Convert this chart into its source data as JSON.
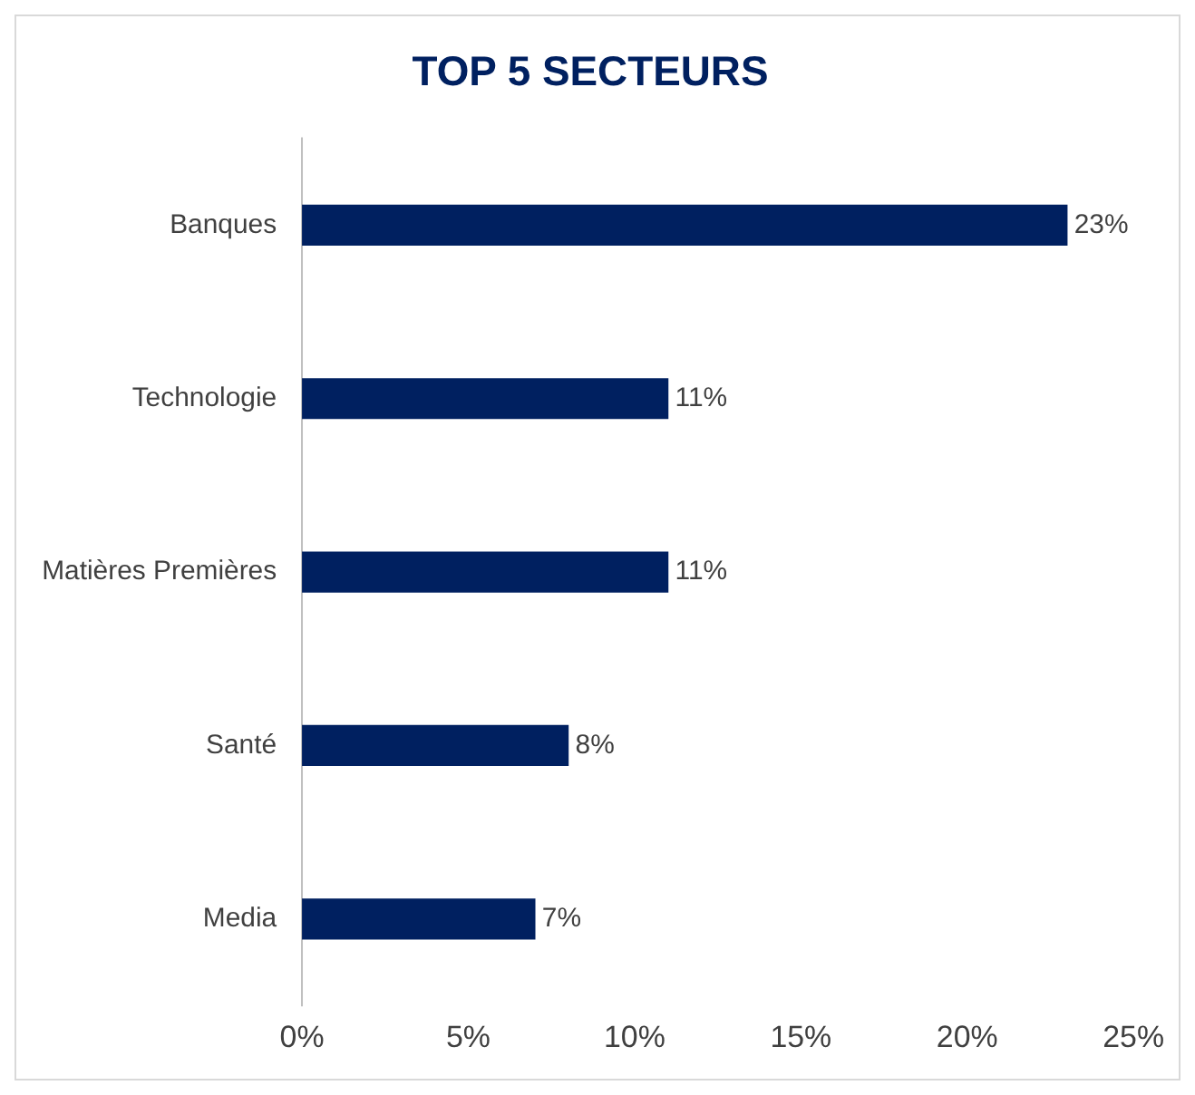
{
  "chart_data": {
    "type": "bar",
    "orientation": "horizontal",
    "title": "TOP 5 SECTEURS",
    "categories": [
      "Banques",
      "Technologie",
      "Matières Premières",
      "Santé",
      "Media"
    ],
    "values": [
      23,
      11,
      11,
      8,
      7
    ],
    "value_labels": [
      "23%",
      "11%",
      "11%",
      "8%",
      "7%"
    ],
    "color": "#002060",
    "xlim": [
      0,
      25
    ],
    "xticks": [
      {
        "value": 0,
        "label": "0%"
      },
      {
        "value": 5,
        "label": "5%"
      },
      {
        "value": 10,
        "label": "10%"
      },
      {
        "value": 15,
        "label": "15%"
      },
      {
        "value": 20,
        "label": "20%"
      },
      {
        "value": 25,
        "label": "25%"
      }
    ],
    "grid": false,
    "legend": false
  }
}
